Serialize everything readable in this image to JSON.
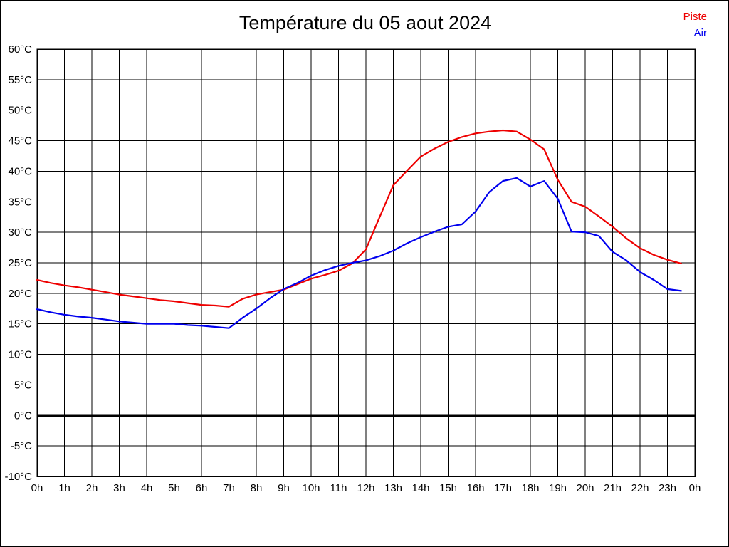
{
  "page": {
    "background": "#ffffff",
    "frame_border_color": "#000000"
  },
  "header": {
    "title": "Température du 05 aout 2024"
  },
  "legend": {
    "position": "top-right",
    "items": [
      {
        "label": "Piste",
        "color": "#ee0000"
      },
      {
        "label": "Air",
        "color": "#0000ee"
      }
    ]
  },
  "chart_data": {
    "type": "line",
    "title": "Température du 05 aout 2024",
    "grid": true,
    "grid_color": "#000000",
    "legend_position": "top-right",
    "x_axis": {
      "unit": "h",
      "min": 0,
      "max": 24,
      "tick_values": [
        0,
        1,
        2,
        3,
        4,
        5,
        6,
        7,
        8,
        9,
        10,
        11,
        12,
        13,
        14,
        15,
        16,
        17,
        18,
        19,
        20,
        21,
        22,
        23,
        24
      ],
      "tick_labels": [
        "0h",
        "1h",
        "2h",
        "3h",
        "4h",
        "5h",
        "6h",
        "7h",
        "8h",
        "9h",
        "10h",
        "11h",
        "12h",
        "13h",
        "14h",
        "15h",
        "16h",
        "17h",
        "18h",
        "19h",
        "20h",
        "21h",
        "22h",
        "23h",
        "0h"
      ]
    },
    "y_axis": {
      "unit": "°C",
      "min": -10,
      "max": 60,
      "tick_step": 5,
      "tick_labels": [
        "60°C",
        "55°C",
        "50°C",
        "45°C",
        "40°C",
        "35°C",
        "30°C",
        "25°C",
        "20°C",
        "15°C",
        "10°C",
        "5°C",
        "0°C",
        "-5°C",
        "-10°C"
      ],
      "zero_line_bold": true
    },
    "x_start": 0,
    "x_step": 0.5,
    "series": [
      {
        "name": "Piste",
        "color": "#ee0000",
        "values": [
          22.2,
          21.7,
          21.3,
          21.0,
          20.6,
          20.2,
          19.8,
          19.5,
          19.2,
          18.9,
          18.7,
          18.4,
          18.1,
          18.0,
          17.8,
          19.1,
          19.8,
          20.2,
          20.6,
          21.5,
          22.4,
          23.0,
          23.7,
          24.9,
          27.2,
          32.5,
          37.7,
          40.1,
          42.4,
          43.7,
          44.8,
          45.6,
          46.2,
          46.5,
          46.7,
          46.5,
          45.2,
          43.6,
          38.6,
          35.0,
          34.2,
          32.6,
          30.9,
          29.0,
          27.4,
          26.3,
          25.5,
          24.9
        ]
      },
      {
        "name": "Air",
        "color": "#0000ee",
        "values": [
          17.4,
          16.9,
          16.5,
          16.2,
          16.0,
          15.7,
          15.4,
          15.2,
          15.0,
          15.0,
          15.0,
          14.8,
          14.7,
          14.5,
          14.3,
          16.0,
          17.5,
          19.2,
          20.7,
          21.7,
          22.9,
          23.8,
          24.5,
          25.0,
          25.4,
          26.1,
          27.0,
          28.2,
          29.2,
          30.1,
          30.9,
          31.3,
          33.4,
          36.6,
          38.4,
          38.9,
          37.5,
          38.4,
          35.5,
          30.1,
          30.0,
          29.4,
          26.8,
          25.4,
          23.5,
          22.2,
          20.7,
          20.4
        ]
      }
    ]
  }
}
